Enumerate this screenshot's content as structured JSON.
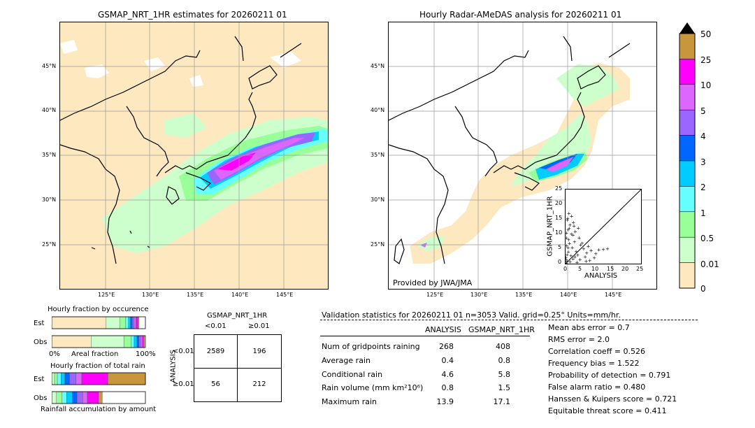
{
  "left_map": {
    "title": "GSMAP_NRT_1HR estimates for 20260211 01",
    "lat_labels": [
      "45°N",
      "40°N",
      "35°N",
      "30°N",
      "25°N"
    ],
    "lon_labels": [
      "125°E",
      "130°E",
      "135°E",
      "140°E",
      "145°E"
    ]
  },
  "right_map": {
    "title": "Hourly Radar-AMeDAS analysis for 20260211 01",
    "lat_labels": [
      "45°N",
      "40°N",
      "35°N",
      "30°N",
      "25°N"
    ],
    "lon_labels": [
      "125°E",
      "130°E",
      "135°E",
      "140°E",
      "145°E"
    ],
    "credit": "Provided by JWA/JMA"
  },
  "colorbar": {
    "labels": [
      "50",
      "25",
      "10",
      "5",
      "4",
      "3",
      "2",
      "1",
      "0.5",
      "0.01",
      "0"
    ],
    "colors": [
      "#c8963c",
      "#ff00ff",
      "#dd66ff",
      "#9966ff",
      "#0066ff",
      "#00ccff",
      "#66ffff",
      "#99ff99",
      "#ccffcc",
      "#fde8c0"
    ]
  },
  "chart_data": [
    {
      "type": "scatter",
      "xlabel": "ANALYSIS",
      "ylabel": "GSMAP_NRT_1HR",
      "xlim": [
        0,
        25
      ],
      "ylim": [
        0,
        25
      ],
      "x_ticks": [
        "0",
        "5",
        "10",
        "15",
        "20",
        "25"
      ],
      "y_ticks": [
        "0",
        "5",
        "10",
        "15",
        "20",
        "25"
      ],
      "points": [
        [
          0.2,
          1.5
        ],
        [
          0.5,
          3.2
        ],
        [
          0.8,
          5.6
        ],
        [
          1.0,
          8.2
        ],
        [
          0.3,
          10.5
        ],
        [
          1.2,
          12.0
        ],
        [
          0.6,
          14.8
        ],
        [
          2.0,
          16.1
        ],
        [
          1.5,
          13.2
        ],
        [
          2.5,
          9.8
        ],
        [
          3.0,
          7.5
        ],
        [
          0.4,
          6.2
        ],
        [
          0.9,
          4.1
        ],
        [
          1.8,
          2.8
        ],
        [
          2.2,
          5.5
        ],
        [
          3.5,
          4.2
        ],
        [
          4.0,
          3.1
        ],
        [
          5.0,
          6.5
        ],
        [
          6.0,
          5.2
        ],
        [
          7.0,
          3.8
        ],
        [
          8.5,
          4.6
        ],
        [
          9.5,
          2.1
        ],
        [
          11.0,
          4.8
        ],
        [
          12.5,
          5.0
        ],
        [
          3.2,
          11.0
        ],
        [
          1.1,
          17.1
        ],
        [
          0.7,
          15.5
        ],
        [
          2.8,
          12.8
        ],
        [
          4.5,
          8.8
        ],
        [
          5.5,
          7.1
        ],
        [
          6.5,
          2.5
        ],
        [
          7.5,
          6.0
        ],
        [
          8.0,
          1.2
        ],
        [
          10.0,
          3.5
        ],
        [
          13.9,
          5.2
        ],
        [
          0.2,
          0.4
        ],
        [
          0.5,
          1.0
        ],
        [
          1.5,
          0.8
        ],
        [
          2.5,
          1.8
        ],
        [
          3.8,
          0.6
        ],
        [
          0.1,
          2.2
        ],
        [
          0.3,
          8.9
        ],
        [
          1.9,
          10.2
        ],
        [
          2.6,
          14.0
        ],
        [
          4.2,
          12.1
        ],
        [
          0.8,
          11.5
        ],
        [
          1.3,
          6.9
        ],
        [
          3.1,
          2.5
        ],
        [
          4.8,
          1.5
        ],
        [
          6.8,
          0.9
        ]
      ]
    },
    {
      "type": "bar",
      "title": "Hourly fraction by occurence",
      "xlabel": "Areal fraction",
      "x_min_label": "0%",
      "x_max_label": "100%",
      "series": [
        {
          "name": "Est",
          "values": [
            0.58,
            0.15,
            0.06,
            0.03,
            0.02,
            0.02,
            0.02,
            0.02,
            0.02,
            0.01
          ]
        },
        {
          "name": "Obs",
          "values": [
            0.42,
            0.35,
            0.08,
            0.03,
            0.03,
            0.02,
            0.02,
            0.02,
            0.01,
            0.01
          ]
        }
      ]
    },
    {
      "type": "bar",
      "title": "Hourly fraction of total rain",
      "xlabel": "Rainfall accumulation by amount",
      "series": [
        {
          "name": "Est",
          "values": [
            0.03,
            0.03,
            0.04,
            0.04,
            0.05,
            0.07,
            0.06,
            0.28,
            0.4
          ]
        },
        {
          "name": "Obs",
          "values": [
            0.05,
            0.06,
            0.05,
            0.06,
            0.05,
            0.06,
            0.05,
            0.12,
            0.04
          ]
        }
      ]
    }
  ],
  "contingency": {
    "title": "GSMAP_NRT_1HR",
    "col_labels": [
      "<0.01",
      "≥0.01"
    ],
    "row_axis": "ANALYSIS",
    "row_labels": [
      "<0.01",
      "≥0.01"
    ],
    "cells": [
      [
        "2589",
        "196"
      ],
      [
        "56",
        "212"
      ]
    ]
  },
  "validation": {
    "header": "Validation statistics for 20260211 01  n=3053 Valid. grid=0.25° Units=mm/hr.",
    "col_analysis": "ANALYSIS",
    "col_gsmap": "GSMAP_NRT_1HR",
    "rows": [
      {
        "label": "Num of gridpoints raining",
        "analysis": "268",
        "gsmap": "408"
      },
      {
        "label": "Average rain",
        "analysis": "0.4",
        "gsmap": "0.8"
      },
      {
        "label": "Conditional rain",
        "analysis": "4.6",
        "gsmap": "5.8"
      },
      {
        "label": "Rain volume (mm km²10⁶)",
        "analysis": "0.8",
        "gsmap": "1.5"
      },
      {
        "label": "Maximum rain",
        "analysis": "13.9",
        "gsmap": "17.1"
      }
    ],
    "scores": [
      "Mean abs error =    0.7",
      "RMS error =    2.0",
      "Correlation coeff =  0.526",
      "Frequency bias =  1.522",
      "Probability of detection =  0.791",
      "False alarm ratio =  0.480",
      "Hanssen & Kuipers score =  0.721",
      "Equitable threat score =  0.411"
    ]
  }
}
